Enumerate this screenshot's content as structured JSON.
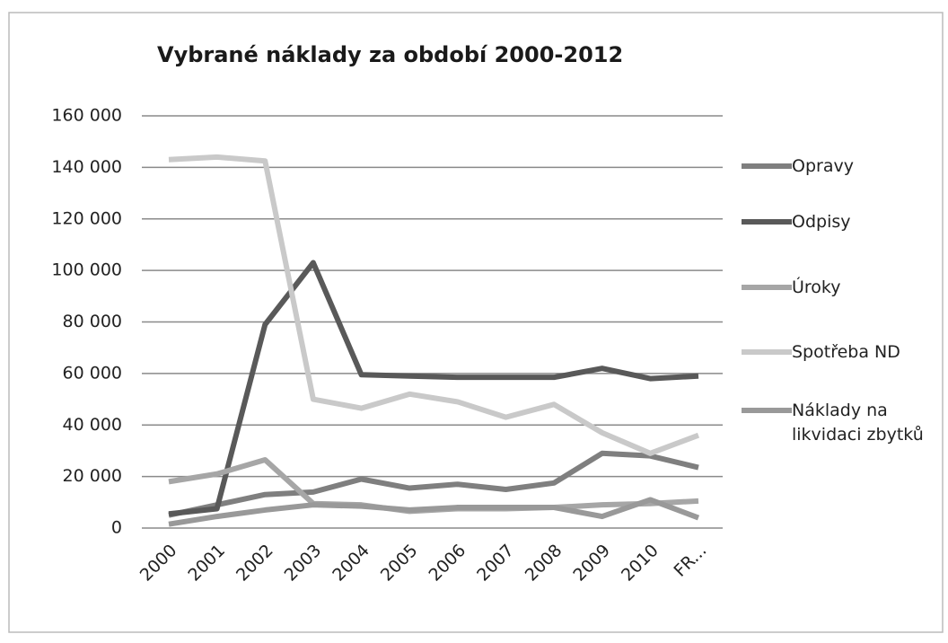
{
  "chart_data": {
    "type": "line",
    "title": "Vybrané náklady za období 2000-2012",
    "categories": [
      "2000",
      "2001",
      "2002",
      "2003",
      "2004",
      "2005",
      "2006",
      "2007",
      "2008",
      "2009",
      "2010",
      "FR..."
    ],
    "series": [
      {
        "name": "Opravy",
        "color": "#7f7f7f",
        "values": [
          5000,
          9000,
          13000,
          14000,
          19000,
          15500,
          17000,
          15000,
          17500,
          29000,
          28000,
          23500
        ]
      },
      {
        "name": "Odpisy",
        "color": "#595959",
        "values": [
          5500,
          7500,
          79000,
          103000,
          59500,
          59000,
          58500,
          58500,
          58500,
          62000,
          58000,
          59000
        ]
      },
      {
        "name": "Úroky",
        "color": "#a6a6a6",
        "values": [
          18000,
          21000,
          26500,
          9500,
          9000,
          6500,
          7500,
          7500,
          8000,
          9000,
          9500,
          10500
        ]
      },
      {
        "name": "Spotřeba ND",
        "color": "#c9c9c9",
        "values": [
          143000,
          144000,
          142500,
          50000,
          46500,
          52000,
          49000,
          43000,
          48000,
          37000,
          29000,
          36000
        ]
      },
      {
        "name": "Náklady na likvidaci zbytků",
        "color": "#999999",
        "values": [
          1500,
          4500,
          7000,
          9000,
          8500,
          7000,
          8000,
          8000,
          8000,
          4500,
          11000,
          4000
        ]
      }
    ],
    "ylim": [
      0,
      160000
    ],
    "yticks": [
      0,
      {
        "value": 20000,
        "label": "20 000"
      },
      {
        "value": 40000,
        "label": "40 000"
      },
      {
        "value": 60000,
        "label": "60 000"
      },
      {
        "value": 80000,
        "label": "80 000"
      },
      {
        "value": 100000,
        "label": "100 000"
      },
      {
        "value": 120000,
        "label": "120 000"
      },
      {
        "value": 140000,
        "label": "140 000"
      },
      {
        "value": 160000,
        "label": "160 000"
      }
    ],
    "grid": true,
    "legend": "right"
  }
}
